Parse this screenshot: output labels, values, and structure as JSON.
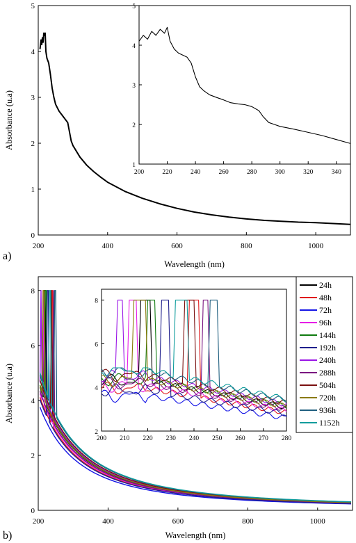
{
  "chart_data": [
    {
      "panel_label": "a)",
      "type": "line",
      "xlabel": "Wavelength (nm)",
      "ylabel": "Absorbance (u.a)",
      "xlim": [
        200,
        1100
      ],
      "ylim": [
        0,
        5
      ],
      "xticks": [
        200,
        400,
        600,
        800,
        1000
      ],
      "yticks": [
        0,
        1,
        2,
        3,
        4,
        5
      ],
      "legend": "none",
      "series": [
        {
          "color": "#000000",
          "x": [
            205,
            208,
            210,
            212,
            214,
            216,
            218,
            220,
            222,
            225,
            230,
            235,
            240,
            245,
            250,
            260,
            270,
            280,
            285,
            290,
            295,
            300,
            320,
            340,
            360,
            380,
            400,
            450,
            500,
            550,
            600,
            650,
            700,
            750,
            800,
            850,
            900,
            950,
            1000,
            1050,
            1100
          ],
          "y": [
            4.05,
            4.25,
            4.15,
            4.3,
            4.2,
            4.4,
            4.35,
            4.4,
            4.0,
            3.85,
            3.75,
            3.5,
            3.2,
            3.0,
            2.85,
            2.7,
            2.6,
            2.5,
            2.45,
            2.25,
            2.05,
            1.95,
            1.7,
            1.52,
            1.38,
            1.26,
            1.15,
            0.95,
            0.8,
            0.68,
            0.58,
            0.5,
            0.44,
            0.39,
            0.35,
            0.32,
            0.3,
            0.28,
            0.27,
            0.25,
            0.23
          ]
        }
      ],
      "inset": {
        "xlim": [
          200,
          350
        ],
        "ylim": [
          1,
          5
        ],
        "xticks": [
          200,
          220,
          240,
          260,
          280,
          300,
          320,
          340
        ],
        "yticks": [
          1,
          2,
          3,
          4,
          5
        ],
        "series": [
          {
            "color": "#000000",
            "x": [
              200,
              203,
              206,
              209,
              212,
              215,
              218,
              220,
              222,
              225,
              228,
              231,
              234,
              237,
              240,
              243,
              246,
              250,
              255,
              260,
              265,
              270,
              275,
              280,
              285,
              288,
              292,
              296,
              300,
              310,
              320,
              330,
              340,
              350
            ],
            "y": [
              4.1,
              4.25,
              4.15,
              4.35,
              4.25,
              4.4,
              4.3,
              4.45,
              4.1,
              3.9,
              3.8,
              3.75,
              3.7,
              3.55,
              3.2,
              2.95,
              2.85,
              2.75,
              2.68,
              2.62,
              2.55,
              2.52,
              2.5,
              2.45,
              2.35,
              2.2,
              2.05,
              2.0,
              1.95,
              1.88,
              1.8,
              1.72,
              1.62,
              1.52
            ]
          }
        ]
      }
    },
    {
      "panel_label": "b)",
      "type": "line",
      "xlabel": "Wavelength (nm)",
      "ylabel": "Absorbance (u.a)",
      "xlim": [
        200,
        1100
      ],
      "ylim": [
        0,
        8.5
      ],
      "xticks": [
        200,
        400,
        600,
        800,
        1000
      ],
      "yticks": [
        0,
        2,
        4,
        6,
        8
      ],
      "legend": "right",
      "series": [
        {
          "name": "24h",
          "color": "#000000",
          "k": 1.0,
          "spikes": [
            [
              217,
              221
            ]
          ]
        },
        {
          "name": "48h",
          "color": "#e0191c",
          "k": 0.92,
          "spikes": [
            [
              238,
              242
            ]
          ]
        },
        {
          "name": "72h",
          "color": "#1414e6",
          "k": 0.84,
          "spikes": []
        },
        {
          "name": "96h",
          "color": "#e61ee6",
          "k": 0.95,
          "spikes": [
            [
              212,
              215
            ]
          ]
        },
        {
          "name": "144h",
          "color": "#0e7a0e",
          "k": 1.02,
          "spikes": [
            [
              220,
              223
            ]
          ]
        },
        {
          "name": "192h",
          "color": "#1e1e8c",
          "k": 0.9,
          "spikes": [
            [
              226,
              229
            ]
          ]
        },
        {
          "name": "240h",
          "color": "#9a14e6",
          "k": 1.04,
          "spikes": [
            [
              207,
              209
            ]
          ]
        },
        {
          "name": "288h",
          "color": "#7a1480",
          "k": 0.97,
          "spikes": [
            [
              244,
              246
            ]
          ]
        },
        {
          "name": "504h",
          "color": "#7a0f0f",
          "k": 1.06,
          "spikes": [
            [
              236,
              240
            ]
          ]
        },
        {
          "name": "720h",
          "color": "#8a7a0a",
          "k": 1.01,
          "spikes": [
            [
              214,
              219
            ]
          ]
        },
        {
          "name": "936h",
          "color": "#1f5f7f",
          "k": 1.1,
          "spikes": [
            [
              247,
              250
            ]
          ]
        },
        {
          "name": "1152h",
          "color": "#0f9c9c",
          "k": 1.12,
          "spikes": [
            [
              232,
              237
            ]
          ]
        }
      ],
      "inset": {
        "xlim": [
          200,
          280
        ],
        "ylim": [
          2,
          8.5
        ],
        "xticks": [
          200,
          210,
          220,
          230,
          240,
          250,
          260,
          270,
          280
        ],
        "yticks": [
          2,
          4,
          6,
          8
        ]
      }
    }
  ]
}
